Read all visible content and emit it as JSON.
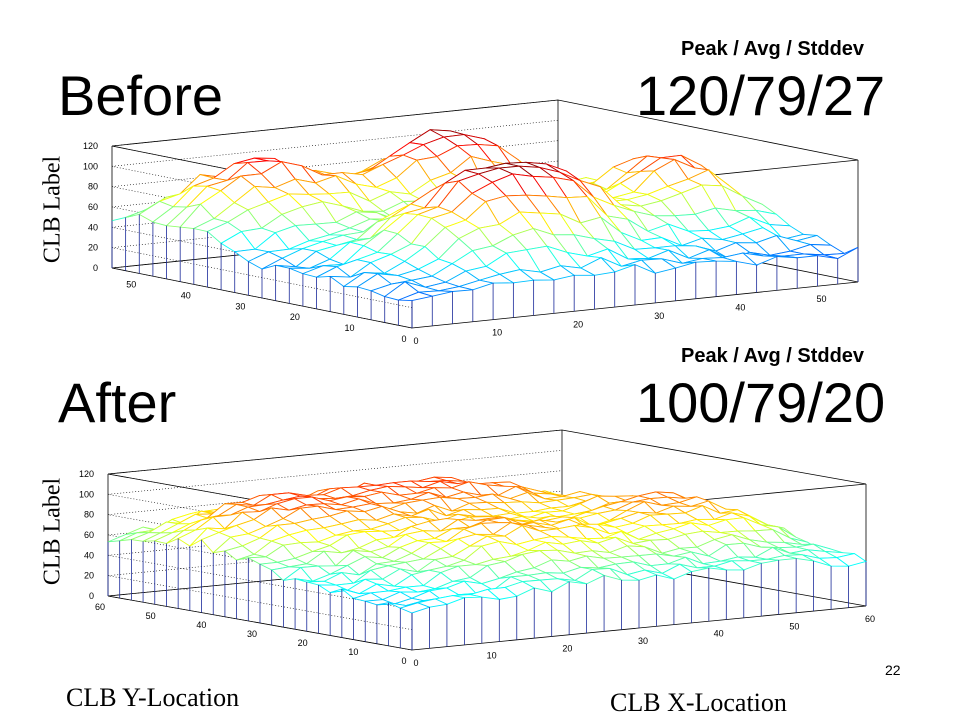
{
  "slide_number": "22",
  "x_axis_label": "CLB X-Location",
  "y_axis_label": "CLB Y-Location",
  "chart_data": [
    {
      "type": "surface",
      "name": "Before",
      "heading": "Before",
      "stats_header": "Peak / Avg / Stddev",
      "stats": "120/79/27",
      "zlabel": "CLB Label",
      "z_ticks": [
        "0",
        "20",
        "40",
        "60",
        "80",
        "100",
        "120"
      ],
      "zlim": [
        0,
        120
      ],
      "x_ticks": [
        "0",
        "10",
        "20",
        "30",
        "40",
        "50"
      ],
      "y_ticks": [
        "0",
        "10",
        "20",
        "30",
        "40",
        "50"
      ],
      "xlim": [
        0,
        55
      ],
      "ylim": [
        0,
        55
      ],
      "colormap": "jet",
      "grid": true,
      "peak": 120,
      "avg": 79,
      "stddev": 27
    },
    {
      "type": "surface",
      "name": "After",
      "heading": "After",
      "stats_header": "Peak / Avg / Stddev",
      "stats": "100/79/20",
      "zlabel": "CLB Label",
      "z_ticks": [
        "0",
        "20",
        "40",
        "60",
        "80",
        "100",
        "120"
      ],
      "zlim": [
        0,
        120
      ],
      "x_ticks": [
        "0",
        "10",
        "20",
        "30",
        "40",
        "50",
        "60"
      ],
      "y_ticks": [
        "0",
        "10",
        "20",
        "30",
        "40",
        "50",
        "60"
      ],
      "xlim": [
        0,
        60
      ],
      "ylim": [
        0,
        60
      ],
      "colormap": "jet",
      "grid": true,
      "peak": 100,
      "avg": 79,
      "stddev": 20
    }
  ]
}
